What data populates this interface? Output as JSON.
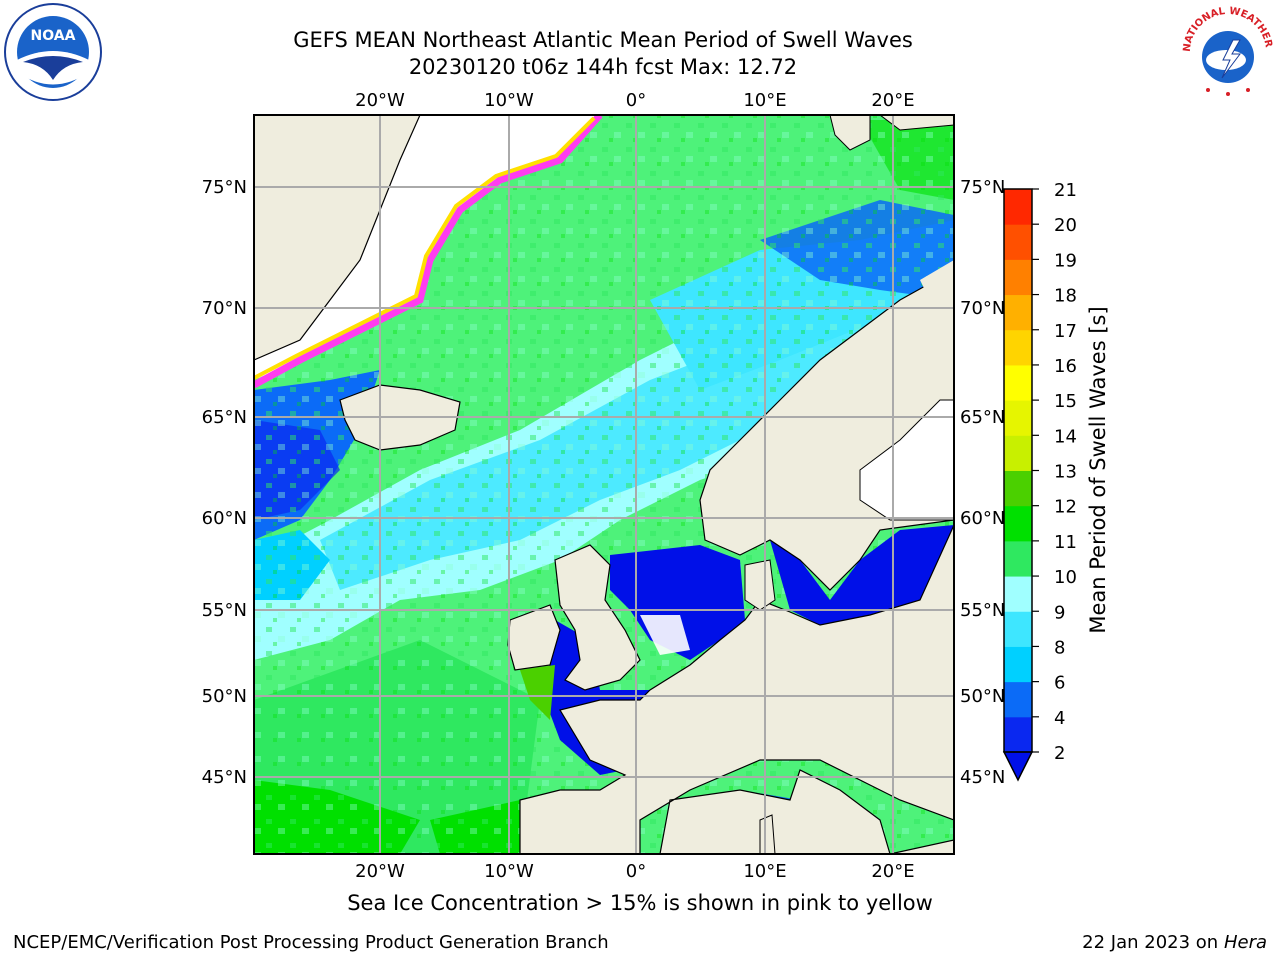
{
  "title_line1": "GEFS MEAN Northeast Atlantic Mean Period of Swell Waves",
  "title_line2": "20230120 t06z 144h fcst   Max: 12.72",
  "caption": "Sea Ice Concentration > 15% is shown in pink to yellow",
  "footer_left": "NCEP/EMC/Verification Post Processing Product Generation Branch",
  "footer_date": "22 Jan 2023 on",
  "footer_host": "Hera",
  "logo_left_text": "NOAA",
  "logo_right_text": "NATIONAL WEATHER SERVICE",
  "map": {
    "lon_labels": [
      "20°W",
      "10°W",
      "0°",
      "10°E",
      "20°E"
    ],
    "lat_labels": [
      "75°N",
      "70°N",
      "65°N",
      "60°N",
      "55°N",
      "50°N",
      "45°N"
    ]
  },
  "colorbar": {
    "title": "Mean Period of Swell Waves [s]",
    "ticks": [
      "2",
      "4",
      "6",
      "8",
      "9",
      "10",
      "11",
      "12",
      "13",
      "14",
      "15",
      "16",
      "17",
      "18",
      "19",
      "20",
      "21"
    ],
    "colors": [
      "#0a28f0",
      "#0b6bf7",
      "#00d0ff",
      "#3ee6ff",
      "#a0ffff",
      "#2fe860",
      "#00e000",
      "#4bd000",
      "#c8f000",
      "#e6f500",
      "#ffff00",
      "#ffd400",
      "#ffb000",
      "#ff8000",
      "#ff5000",
      "#ff2800",
      "#ff0000"
    ],
    "under_color": "#0010e8"
  },
  "colors": {
    "land": "#efedde",
    "ocean_base": "#4ef27a",
    "grid": "#aaaaaa",
    "ice_pink": "#ff3cf0",
    "ice_yellow": "#ffe000"
  }
}
